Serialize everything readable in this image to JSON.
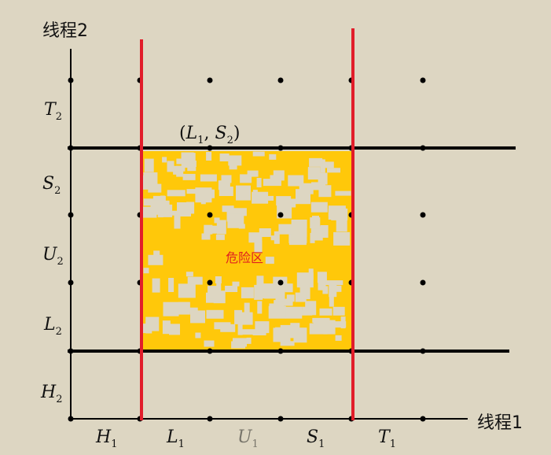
{
  "axes": {
    "y_title": "线程2",
    "x_title": "线程1"
  },
  "x_ticks": [
    {
      "main": "H",
      "sub": "1"
    },
    {
      "main": "L",
      "sub": "1"
    },
    {
      "main": "U",
      "sub": "1"
    },
    {
      "main": "S",
      "sub": "1"
    },
    {
      "main": "T",
      "sub": "1"
    }
  ],
  "y_ticks": [
    {
      "main": "H",
      "sub": "2"
    },
    {
      "main": "L",
      "sub": "2"
    },
    {
      "main": "U",
      "sub": "2"
    },
    {
      "main": "S",
      "sub": "2"
    },
    {
      "main": "T",
      "sub": "2"
    }
  ],
  "point_label": {
    "open": "(",
    "a": "L",
    "a_sub": "1",
    "sep": ", ",
    "b": "S",
    "b_sub": "2",
    "close": ")"
  },
  "danger_zone_label": "危险区",
  "colors": {
    "background": "#ddd6c2",
    "danger_fill": "#ffc80a",
    "red_line": "#e11d2a",
    "black_line": "#000000"
  }
}
